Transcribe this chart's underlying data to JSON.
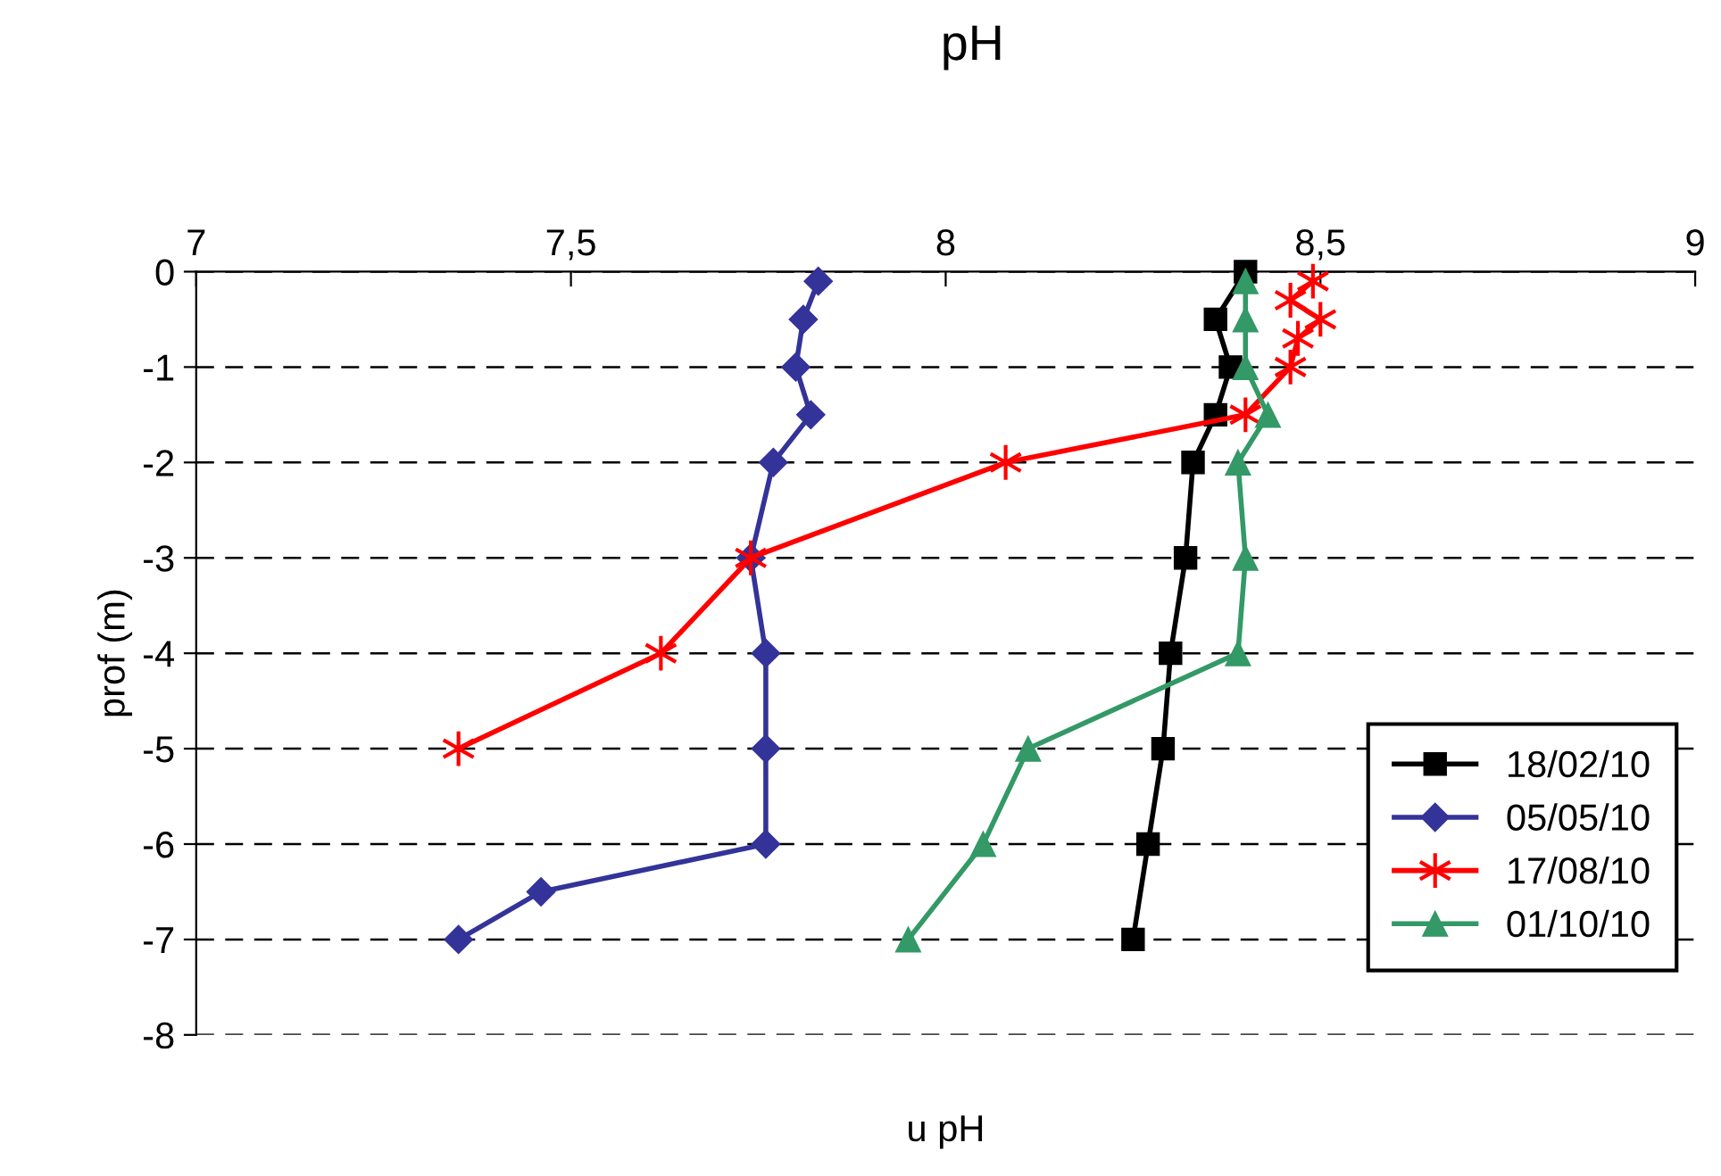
{
  "chart_data": {
    "type": "line",
    "title": "pH",
    "xlabel": "u pH",
    "ylabel": "prof (m)",
    "xlim": [
      7,
      9
    ],
    "xticks": [
      {
        "value": 7,
        "label": "7"
      },
      {
        "value": 7.5,
        "label": "7,5"
      },
      {
        "value": 8,
        "label": "8"
      },
      {
        "value": 8.5,
        "label": "8,5"
      },
      {
        "value": 9,
        "label": "9"
      }
    ],
    "ylim": [
      -8,
      0
    ],
    "yticks": [
      -8,
      -7,
      -6,
      -5,
      -4,
      -3,
      -2,
      -1,
      0
    ],
    "grid": "y",
    "legend": "bottom right",
    "line_style": "solid",
    "series": [
      {
        "name": "18/02/10",
        "color": "#000000",
        "marker": "square",
        "x": [
          8.4,
          8.36,
          8.38,
          8.36,
          8.33,
          8.32,
          8.3,
          8.29,
          8.27,
          8.25
        ],
        "values": [
          0,
          -0.5,
          -1,
          -1.5,
          -2,
          -3,
          -4,
          -5,
          -6,
          -7
        ]
      },
      {
        "name": "05/05/10",
        "color": "#333399",
        "marker": "diamond",
        "x": [
          7.83,
          7.81,
          7.8,
          7.82,
          7.77,
          7.74,
          7.76,
          7.76,
          7.76,
          7.46,
          7.35
        ],
        "values": [
          -0.1,
          -0.5,
          -1,
          -1.5,
          -2,
          -3,
          -4,
          -5,
          -6,
          -6.5,
          -7
        ]
      },
      {
        "name": "17/08/10",
        "color": "#ff0000",
        "marker": "cross",
        "x": [
          8.49,
          8.46,
          8.5,
          8.47,
          8.46,
          8.4,
          8.08,
          7.74,
          7.62,
          7.35
        ],
        "values": [
          -0.1,
          -0.3,
          -0.5,
          -0.7,
          -1,
          -1.5,
          -2,
          -3,
          -4,
          -5
        ]
      },
      {
        "name": "01/10/10",
        "color": "#339966",
        "marker": "triangle",
        "x": [
          8.4,
          8.4,
          8.4,
          8.43,
          8.39,
          8.4,
          8.39,
          8.11,
          8.05,
          7.95
        ],
        "values": [
          -0.1,
          -0.5,
          -1,
          -1.5,
          -2,
          -3,
          -4,
          -5,
          -6,
          -7
        ]
      }
    ]
  }
}
